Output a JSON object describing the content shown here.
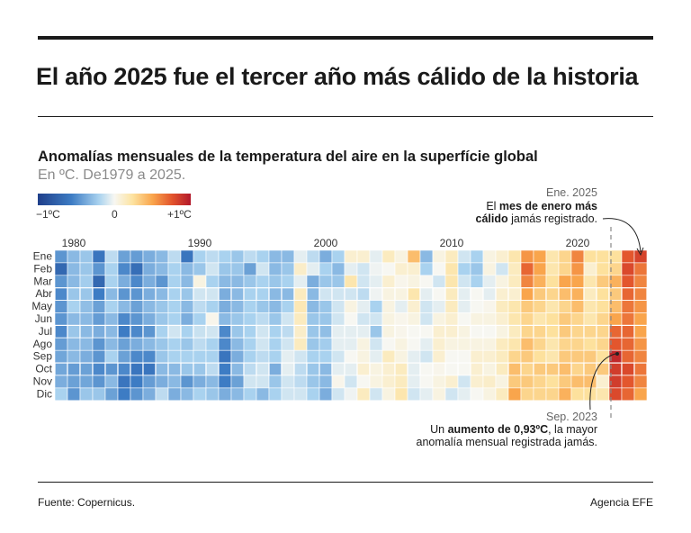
{
  "header": {
    "title": "El año 2025 fue el tercer año más cálido de la historia",
    "subtitle": "Anomalías mensuales de la temperatura del aire en la superfície global",
    "units": "En ºC. De1979 a 2025."
  },
  "legend": {
    "min_label": "−1ºC",
    "mid_label": "0",
    "max_label": "+1ºC",
    "colors": [
      "#1f3f8a",
      "#3d7cc4",
      "#a9d2ef",
      "#f7f7f2",
      "#fde3a0",
      "#f9a54c",
      "#e2532c",
      "#b2182b"
    ]
  },
  "annotations": {
    "jan2025": {
      "head": "Ene. 2025",
      "pre": "El ",
      "bold": "mes de enero más",
      "bold2": "cálido",
      "post": " jamás registrado."
    },
    "sep2023": {
      "head": "Sep. 2023",
      "pre": "Un ",
      "bold": "aumento de 0,93ºC",
      "post": ", la mayor",
      "line2": "anomalía mensual registrada jamás."
    }
  },
  "footer": {
    "source": "Fuente: Copernicus.",
    "agency": "Agencia EFE"
  },
  "chart_data": {
    "type": "heatmap",
    "title": "Anomalías mensuales de la temperatura del aire en la superfície global",
    "x_tick_labels": [
      "1980",
      "1990",
      "2000",
      "2010",
      "2020"
    ],
    "y_labels": [
      "Ene",
      "Feb",
      "Mar",
      "Abr",
      "May",
      "Jun",
      "Jul",
      "Ago",
      "Sep",
      "Oct",
      "Nov",
      "Dic"
    ],
    "color_range": [
      -1,
      1
    ],
    "years": [
      1979,
      1980,
      1981,
      1982,
      1983,
      1984,
      1985,
      1986,
      1987,
      1988,
      1989,
      1990,
      1991,
      1992,
      1993,
      1994,
      1995,
      1996,
      1997,
      1998,
      1999,
      2000,
      2001,
      2002,
      2003,
      2004,
      2005,
      2006,
      2007,
      2008,
      2009,
      2010,
      2011,
      2012,
      2013,
      2014,
      2015,
      2016,
      2017,
      2018,
      2019,
      2020,
      2021,
      2022,
      2023,
      2024,
      2025
    ],
    "values": [
      [
        -0.45,
        -0.7,
        -0.45,
        -0.5,
        -0.45,
        -0.45,
        -0.5,
        -0.42,
        -0.38,
        -0.38,
        -0.35,
        -0.2
      ],
      [
        -0.3,
        -0.3,
        -0.3,
        -0.25,
        -0.2,
        -0.3,
        -0.25,
        -0.3,
        -0.3,
        -0.42,
        -0.4,
        -0.45
      ],
      [
        -0.25,
        -0.25,
        -0.22,
        -0.25,
        -0.28,
        -0.3,
        -0.3,
        -0.3,
        -0.35,
        -0.4,
        -0.38,
        -0.25
      ],
      [
        -0.6,
        -0.45,
        -0.7,
        -0.55,
        -0.4,
        -0.42,
        -0.35,
        -0.45,
        -0.45,
        -0.5,
        -0.45,
        -0.25
      ],
      [
        -0.15,
        -0.2,
        -0.2,
        -0.3,
        -0.2,
        -0.3,
        -0.3,
        -0.3,
        -0.2,
        -0.45,
        -0.3,
        -0.4
      ],
      [
        -0.4,
        -0.5,
        -0.35,
        -0.45,
        -0.3,
        -0.5,
        -0.55,
        -0.4,
        -0.4,
        -0.5,
        -0.6,
        -0.55
      ],
      [
        -0.42,
        -0.65,
        -0.5,
        -0.45,
        -0.4,
        -0.45,
        -0.5,
        -0.35,
        -0.5,
        -0.6,
        -0.55,
        -0.45
      ],
      [
        -0.35,
        -0.35,
        -0.35,
        -0.35,
        -0.3,
        -0.35,
        -0.45,
        -0.3,
        -0.5,
        -0.6,
        -0.42,
        -0.35
      ],
      [
        -0.3,
        -0.3,
        -0.45,
        -0.3,
        -0.25,
        -0.25,
        -0.2,
        -0.25,
        -0.25,
        -0.3,
        -0.35,
        -0.15
      ],
      [
        -0.15,
        -0.2,
        -0.2,
        -0.2,
        -0.2,
        -0.2,
        -0.1,
        -0.2,
        -0.2,
        -0.3,
        -0.3,
        -0.35
      ],
      [
        -0.6,
        -0.3,
        -0.3,
        -0.25,
        -0.3,
        -0.35,
        -0.2,
        -0.25,
        -0.2,
        -0.25,
        -0.45,
        -0.3
      ],
      [
        -0.2,
        -0.25,
        0.05,
        -0.1,
        -0.15,
        -0.2,
        -0.12,
        -0.15,
        -0.2,
        -0.25,
        -0.35,
        -0.2
      ],
      [
        -0.15,
        -0.1,
        -0.2,
        -0.1,
        -0.2,
        0.02,
        -0.1,
        -0.2,
        -0.2,
        -0.15,
        -0.3,
        -0.25
      ],
      [
        -0.2,
        -0.25,
        -0.3,
        -0.35,
        -0.35,
        -0.3,
        -0.5,
        -0.5,
        -0.6,
        -0.55,
        -0.55,
        -0.35
      ],
      [
        -0.25,
        -0.25,
        -0.3,
        -0.3,
        -0.3,
        -0.25,
        -0.25,
        -0.3,
        -0.35,
        -0.3,
        -0.4,
        -0.3
      ],
      [
        -0.15,
        -0.4,
        -0.25,
        -0.2,
        -0.2,
        -0.2,
        -0.2,
        -0.2,
        -0.2,
        -0.15,
        -0.1,
        -0.2
      ],
      [
        -0.2,
        -0.1,
        -0.2,
        -0.2,
        -0.25,
        -0.15,
        -0.1,
        -0.1,
        -0.15,
        -0.1,
        -0.1,
        -0.3
      ],
      [
        -0.3,
        -0.3,
        -0.25,
        -0.3,
        -0.3,
        -0.25,
        -0.2,
        -0.2,
        -0.2,
        -0.35,
        -0.25,
        -0.2
      ],
      [
        -0.3,
        -0.25,
        -0.2,
        -0.3,
        -0.2,
        -0.1,
        -0.15,
        -0.1,
        -0.05,
        -0.05,
        -0.1,
        -0.1
      ],
      [
        -0.05,
        0.12,
        -0.05,
        0.15,
        0.18,
        0.15,
        0.12,
        0.15,
        -0.1,
        -0.15,
        -0.15,
        -0.1
      ],
      [
        -0.15,
        -0.05,
        -0.35,
        -0.3,
        -0.3,
        -0.25,
        -0.25,
        -0.25,
        -0.2,
        -0.25,
        -0.25,
        -0.2
      ],
      [
        -0.35,
        -0.2,
        -0.25,
        -0.1,
        -0.25,
        -0.25,
        -0.28,
        -0.22,
        -0.2,
        -0.3,
        -0.3,
        -0.35
      ],
      [
        -0.2,
        -0.3,
        -0.25,
        -0.1,
        -0.1,
        -0.1,
        -0.05,
        -0.05,
        -0.1,
        -0.05,
        0.02,
        -0.1
      ],
      [
        0.1,
        -0.05,
        0.2,
        -0.1,
        0.05,
        0.0,
        -0.05,
        -0.05,
        0.0,
        -0.05,
        -0.1,
        -0.02
      ],
      [
        0.1,
        -0.1,
        -0.1,
        -0.15,
        -0.05,
        -0.1,
        -0.05,
        0.05,
        0.05,
        0.1,
        0.0,
        0.15
      ],
      [
        -0.05,
        -0.02,
        -0.05,
        -0.02,
        -0.2,
        -0.1,
        -0.25,
        -0.1,
        -0.05,
        0.05,
        0.05,
        -0.1
      ],
      [
        0.15,
        0.0,
        0.1,
        0.05,
        0.05,
        0.05,
        0.05,
        0.0,
        0.15,
        0.1,
        0.1,
        0.05
      ],
      [
        0.05,
        0.1,
        0.02,
        0.05,
        -0.05,
        0.02,
        0.02,
        0.05,
        0.05,
        0.15,
        0.15,
        0.2
      ],
      [
        0.4,
        0.1,
        0.05,
        0.2,
        0.1,
        0.05,
        0.0,
        0.0,
        -0.05,
        -0.05,
        -0.05,
        -0.1
      ],
      [
        -0.3,
        -0.2,
        0.0,
        -0.05,
        -0.1,
        -0.1,
        0.0,
        -0.05,
        -0.1,
        0.0,
        0.0,
        -0.05
      ],
      [
        0.05,
        0.0,
        -0.1,
        0.0,
        -0.05,
        0.05,
        0.1,
        0.1,
        0.1,
        0.02,
        0.05,
        0.05
      ],
      [
        0.15,
        0.2,
        0.2,
        0.15,
        0.15,
        0.1,
        0.1,
        0.05,
        0.0,
        0.0,
        0.1,
        -0.1
      ],
      [
        -0.1,
        -0.2,
        -0.1,
        -0.05,
        -0.05,
        0.0,
        0.05,
        0.05,
        0.0,
        0.0,
        -0.1,
        -0.05
      ],
      [
        -0.2,
        -0.25,
        -0.2,
        0.0,
        0.0,
        0.05,
        0.0,
        0.05,
        0.1,
        0.1,
        0.1,
        0.0
      ],
      [
        0.05,
        0.05,
        -0.05,
        -0.05,
        0.02,
        0.05,
        0.0,
        0.05,
        0.1,
        0.05,
        0.12,
        0.05
      ],
      [
        0.1,
        -0.1,
        0.05,
        0.1,
        0.15,
        0.1,
        0.05,
        0.15,
        0.15,
        0.15,
        0.05,
        0.15
      ],
      [
        0.2,
        0.15,
        0.15,
        0.1,
        0.2,
        0.2,
        0.15,
        0.2,
        0.3,
        0.4,
        0.35,
        0.5
      ],
      [
        0.55,
        0.7,
        0.6,
        0.5,
        0.35,
        0.3,
        0.3,
        0.4,
        0.35,
        0.3,
        0.35,
        0.3
      ],
      [
        0.5,
        0.5,
        0.45,
        0.35,
        0.3,
        0.2,
        0.3,
        0.3,
        0.25,
        0.35,
        0.3,
        0.3
      ],
      [
        0.2,
        0.2,
        0.25,
        0.3,
        0.2,
        0.25,
        0.25,
        0.2,
        0.2,
        0.35,
        0.25,
        0.3
      ],
      [
        0.3,
        0.3,
        0.5,
        0.4,
        0.3,
        0.35,
        0.35,
        0.3,
        0.35,
        0.4,
        0.35,
        0.45
      ],
      [
        0.6,
        0.55,
        0.5,
        0.45,
        0.4,
        0.3,
        0.3,
        0.3,
        0.35,
        0.3,
        0.4,
        0.25
      ],
      [
        0.25,
        0.1,
        0.2,
        0.15,
        0.2,
        0.2,
        0.3,
        0.25,
        0.35,
        0.35,
        0.4,
        0.25
      ],
      [
        0.25,
        0.25,
        0.35,
        0.25,
        0.25,
        0.3,
        0.3,
        0.3,
        0.25,
        0.35,
        0.1,
        0.2
      ],
      [
        0.25,
        0.3,
        0.45,
        0.35,
        0.4,
        0.5,
        0.7,
        0.75,
        0.93,
        0.85,
        0.85,
        0.8
      ],
      [
        0.75,
        0.8,
        0.75,
        0.7,
        0.65,
        0.65,
        0.7,
        0.7,
        0.7,
        0.8,
        0.75,
        0.7
      ],
      [
        0.82,
        0.65,
        0.6,
        0.6,
        0.55,
        0.5,
        0.5,
        0.55,
        0.6,
        0.65,
        0.6,
        0.5
      ]
    ]
  }
}
